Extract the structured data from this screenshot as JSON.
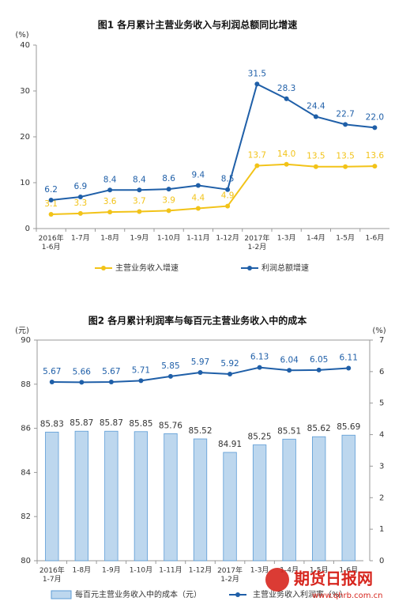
{
  "chart_data": [
    {
      "type": "line",
      "title": "图1 各月累计主营业务收入与利润总额同比增速",
      "y_unit": "(%)",
      "categories": [
        "2016年\n1-6月",
        "1-7月",
        "1-8月",
        "1-9月",
        "1-10月",
        "1-11月",
        "1-12月",
        "2017年\n1-2月",
        "1-3月",
        "1-4月",
        "1-5月",
        "1-6月"
      ],
      "series": [
        {
          "name": "主营业务收入增速",
          "color": "#f2c318",
          "values": [
            3.1,
            3.3,
            3.6,
            3.7,
            3.9,
            4.4,
            4.9,
            13.7,
            14.0,
            13.5,
            13.5,
            13.6
          ],
          "value_labels": [
            "3.1",
            "3.3",
            "3.6",
            "3.7",
            "3.9",
            "4.4",
            "4.9",
            "13.7",
            "14.0",
            "13.5",
            "13.5",
            "13.6"
          ]
        },
        {
          "name": "利润总额增速",
          "color": "#1f5fa8",
          "values": [
            6.2,
            6.9,
            8.4,
            8.4,
            8.6,
            9.4,
            8.5,
            31.5,
            28.3,
            24.4,
            22.7,
            22.0
          ],
          "value_labels": [
            "6.2",
            "6.9",
            "8.4",
            "8.4",
            "8.6",
            "9.4",
            "8.5",
            "31.5",
            "28.3",
            "24.4",
            "22.7",
            "22.0"
          ]
        }
      ],
      "ylim": [
        0,
        40
      ],
      "yticks": [
        0,
        10,
        20,
        30,
        40
      ],
      "grid": false
    },
    {
      "type": "bar",
      "title": "图2 各月累计利润率与每百元主营业务收入中的成本",
      "y_unit": "(元)",
      "y2_unit": "(%)",
      "categories": [
        "2016年\n1-7月",
        "1-8月",
        "1-9月",
        "1-10月",
        "1-11月",
        "1-12月",
        "2017年\n1-2月",
        "1-3月",
        "1-4月",
        "1-5月",
        "1-6月"
      ],
      "series": [
        {
          "name": "每百元主营业务收入中的成本（元）",
          "type": "bar",
          "color": "#bdd7ee",
          "values": [
            85.83,
            85.87,
            85.87,
            85.85,
            85.76,
            85.52,
            84.91,
            85.25,
            85.51,
            85.62,
            85.69
          ]
        },
        {
          "name": "主营业务收入利润率（%）",
          "type": "line",
          "axis": "y2",
          "color": "#1f5fa8",
          "values": [
            5.67,
            5.66,
            5.67,
            5.71,
            5.85,
            5.97,
            5.92,
            6.13,
            6.04,
            6.05,
            6.11
          ]
        }
      ],
      "ylim": [
        80,
        90
      ],
      "yticks": [
        80,
        82,
        84,
        86,
        88,
        90
      ],
      "y2lim": [
        0,
        7
      ],
      "y2ticks": [
        0,
        1,
        2,
        3,
        4,
        5,
        6,
        7
      ],
      "grid": false
    }
  ],
  "watermark": "期货日报网",
  "watermark_url": "www.qhrb.com.cn"
}
